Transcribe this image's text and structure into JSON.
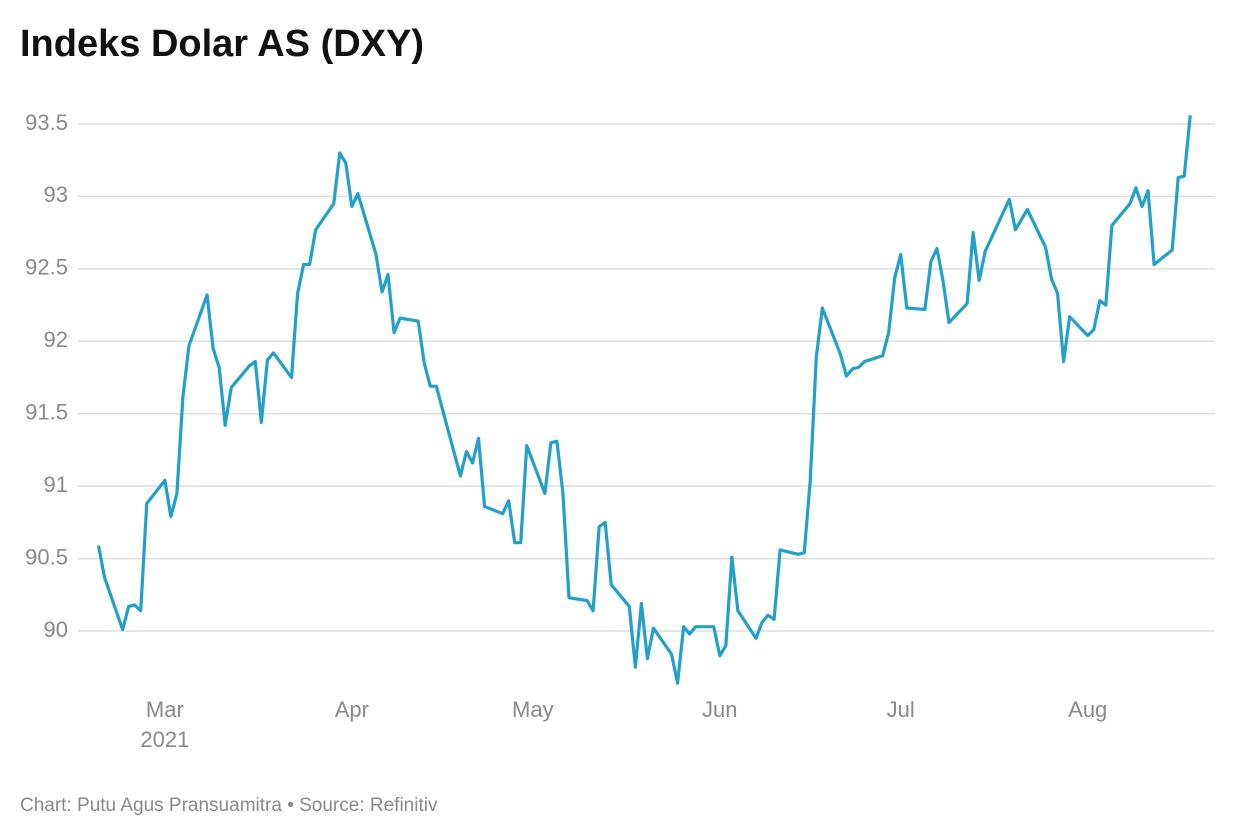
{
  "chart_data": {
    "type": "line",
    "title": "Indeks Dolar AS (DXY)",
    "footer": "Chart: Putu Agus Pransuamitra • Source: Refinitiv",
    "x_sublabel": "2021",
    "x": [
      -11,
      -10,
      -7,
      -6,
      -5,
      -4,
      -3,
      0,
      1,
      2,
      3,
      4,
      7,
      8,
      9,
      10,
      11,
      14,
      15,
      16,
      17,
      18,
      21,
      22,
      23,
      24,
      25,
      28,
      29,
      30,
      31,
      32,
      35,
      36,
      37,
      38,
      39,
      42,
      43,
      44,
      45,
      49,
      50,
      51,
      52,
      53,
      56,
      57,
      58,
      59,
      60,
      63,
      64,
      65,
      66,
      67,
      70,
      71,
      72,
      73,
      74,
      77,
      78,
      79,
      80,
      81,
      84,
      85,
      86,
      87,
      88,
      91,
      92,
      93,
      94,
      95,
      98,
      99,
      100,
      101,
      102,
      105,
      106,
      107,
      108,
      109,
      112,
      113,
      114,
      115,
      116,
      119,
      120,
      121,
      122,
      123,
      126,
      127,
      128,
      129,
      130,
      133,
      134,
      135,
      136,
      140,
      141,
      143,
      146,
      147,
      148,
      149,
      150,
      153,
      154,
      155,
      156,
      157,
      160,
      161,
      162,
      163,
      164,
      167,
      168,
      169,
      170
    ],
    "series": [
      {
        "name": "DXY",
        "color": "#239fcb",
        "values": [
          90.59,
          90.37,
          90.01,
          90.17,
          90.18,
          90.14,
          90.88,
          91.04,
          90.79,
          90.95,
          91.62,
          91.97,
          92.32,
          91.95,
          91.82,
          91.42,
          91.68,
          91.83,
          91.86,
          91.44,
          91.87,
          91.92,
          91.75,
          92.33,
          92.53,
          92.53,
          92.77,
          92.95,
          93.3,
          93.23,
          92.93,
          93.02,
          92.6,
          92.34,
          92.46,
          92.06,
          92.16,
          92.14,
          91.85,
          91.69,
          91.69,
          91.07,
          91.24,
          91.16,
          91.33,
          90.86,
          90.81,
          90.9,
          90.61,
          90.61,
          91.28,
          90.95,
          91.3,
          91.31,
          90.95,
          90.23,
          90.21,
          90.14,
          90.72,
          90.75,
          90.32,
          90.17,
          89.75,
          90.19,
          89.81,
          90.02,
          89.84,
          89.64,
          90.03,
          89.98,
          90.03,
          90.03,
          89.83,
          89.9,
          90.51,
          90.14,
          89.95,
          90.06,
          90.11,
          90.08,
          90.56,
          90.53,
          90.54,
          91.04,
          91.89,
          92.23,
          91.91,
          91.76,
          91.81,
          91.82,
          91.86,
          91.9,
          92.06,
          92.44,
          92.6,
          92.23,
          92.22,
          92.55,
          92.64,
          92.42,
          92.13,
          92.26,
          92.75,
          92.42,
          92.62,
          92.98,
          92.77,
          92.91,
          92.65,
          92.43,
          92.33,
          91.86,
          92.17,
          92.04,
          92.08,
          92.28,
          92.25,
          92.8,
          92.95,
          93.06,
          92.93,
          93.04,
          92.53,
          92.63,
          93.13,
          93.14,
          93.56
        ]
      }
    ],
    "xlim": [
      -14.4,
      174.1
    ],
    "xticks": [
      {
        "value": 0,
        "label": "Mar"
      },
      {
        "value": 31,
        "label": "Apr"
      },
      {
        "value": 61,
        "label": "May"
      },
      {
        "value": 92,
        "label": "Jun"
      },
      {
        "value": 122,
        "label": "Jul"
      },
      {
        "value": 153,
        "label": "Aug"
      }
    ],
    "ylim": [
      89.6,
      93.6
    ],
    "yticks": [
      90,
      90.5,
      91,
      91.5,
      92,
      92.5,
      93,
      93.5
    ],
    "grid": true
  }
}
